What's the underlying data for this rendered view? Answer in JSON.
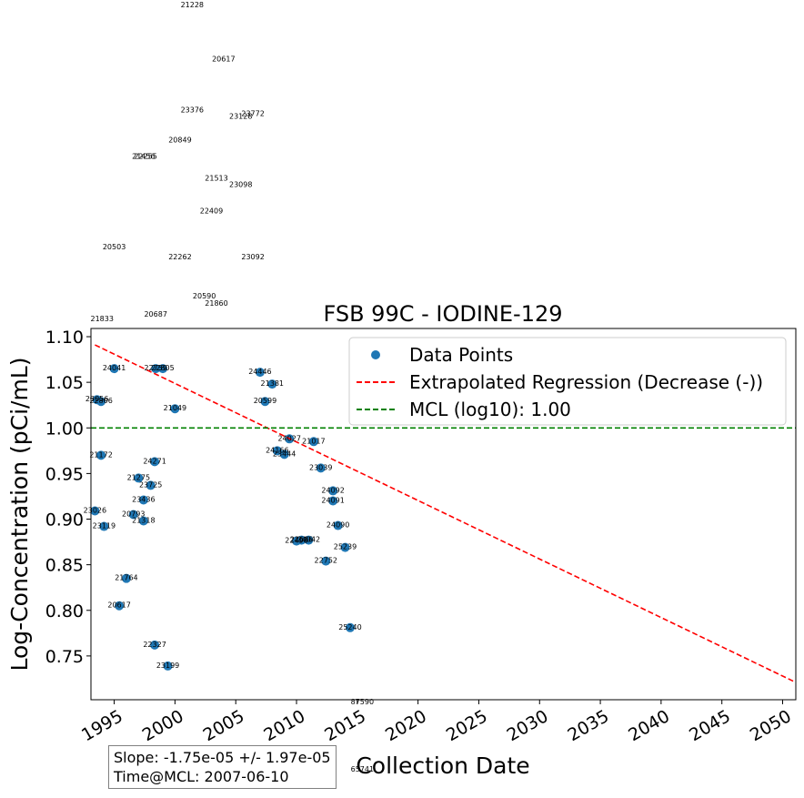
{
  "chart_data": {
    "type": "scatter",
    "title": "FSB 99C - IODINE-129",
    "xlabel": "Collection Date",
    "ylabel": "Log-Concentration (pCi/mL)",
    "xlim": [
      "1993-02-01",
      "2051-02-01"
    ],
    "ylim": [
      0.702,
      1.109
    ],
    "x_ticks": [
      "1995",
      "2000",
      "2005",
      "2010",
      "2015",
      "2020",
      "2025",
      "2030",
      "2035",
      "2040",
      "2045",
      "2050"
    ],
    "y_ticks": [
      "0.75",
      "0.80",
      "0.85",
      "0.90",
      "0.95",
      "1.00",
      "1.05",
      "1.10"
    ],
    "legend": {
      "location": "top-right",
      "entries": [
        "Data Points",
        "Extrapolated Regression (Decrease (-))",
        "MCL (log10): 1.00"
      ]
    },
    "colors": {
      "points": "#1f77b4",
      "regression": "#ff0000",
      "mcl": "#008000"
    },
    "series": [
      {
        "name": "Data Points",
        "points": [
          {
            "x": "1993-06-01",
            "y": 0.909,
            "label": "23026"
          },
          {
            "x": "1993-08-01",
            "y": 1.031,
            "label": "23056"
          },
          {
            "x": "1993-12-01",
            "y": 1.029,
            "label": "22806"
          },
          {
            "x": "1993-12-01",
            "y": 0.97,
            "label": "21172"
          },
          {
            "x": "1994-03-01",
            "y": 0.892,
            "label": "23119"
          },
          {
            "x": "1995-01-01",
            "y": 1.065,
            "label": "24041"
          },
          {
            "x": "1995-06-01",
            "y": 0.805,
            "label": "20617"
          },
          {
            "x": "1996-01-01",
            "y": 0.835,
            "label": "21764"
          },
          {
            "x": "1996-08-01",
            "y": 0.905,
            "label": "20793"
          },
          {
            "x": "1997-01-01",
            "y": 0.945,
            "label": "21275"
          },
          {
            "x": "1997-06-01",
            "y": 0.921,
            "label": "23436"
          },
          {
            "x": "1997-06-01",
            "y": 0.898,
            "label": "21318"
          },
          {
            "x": "1998-01-01",
            "y": 0.937,
            "label": "23725"
          },
          {
            "x": "1998-05-01",
            "y": 0.963,
            "label": "24271"
          },
          {
            "x": "1998-05-01",
            "y": 0.762,
            "label": "22327"
          },
          {
            "x": "1998-06-01",
            "y": 1.065,
            "label": "22759"
          },
          {
            "x": "1999-01-01",
            "y": 1.065,
            "label": "22805"
          },
          {
            "x": "1999-06-01",
            "y": 0.739,
            "label": "23199"
          },
          {
            "x": "2000-01-01",
            "y": 1.021,
            "label": "21049"
          },
          {
            "x": "2007-01-01",
            "y": 1.061,
            "label": "24446"
          },
          {
            "x": "2007-06-01",
            "y": 1.029,
            "label": "20599"
          },
          {
            "x": "2008-01-01",
            "y": 1.048,
            "label": "21381"
          },
          {
            "x": "2008-06-01",
            "y": 0.975,
            "label": "24166"
          },
          {
            "x": "2009-01-01",
            "y": 0.971,
            "label": "23444"
          },
          {
            "x": "2009-06-01",
            "y": 0.988,
            "label": "24027"
          },
          {
            "x": "2010-01-01",
            "y": 0.876,
            "label": "22498"
          },
          {
            "x": "2010-06-01",
            "y": 0.877,
            "label": "22666"
          },
          {
            "x": "2011-01-01",
            "y": 0.877,
            "label": "24042"
          },
          {
            "x": "2011-06-01",
            "y": 0.985,
            "label": "21017"
          },
          {
            "x": "2012-01-01",
            "y": 0.956,
            "label": "23039"
          },
          {
            "x": "2012-06-01",
            "y": 0.854,
            "label": "22752"
          },
          {
            "x": "2013-01-01",
            "y": 0.931,
            "label": "24092"
          },
          {
            "x": "2013-01-01",
            "y": 0.92,
            "label": "24091"
          },
          {
            "x": "2013-06-01",
            "y": 0.893,
            "label": "24090"
          },
          {
            "x": "2014-01-01",
            "y": 0.869,
            "label": "25239"
          },
          {
            "x": "2014-06-01",
            "y": 0.781,
            "label": "25240"
          }
        ]
      },
      {
        "name": "Extrapolated Regression (Decrease (-))",
        "points": [
          {
            "x": "1993-06-01",
            "y": 1.091
          },
          {
            "x": "2051-02-01",
            "y": 0.721
          }
        ]
      },
      {
        "name": "MCL (log10): 1.00",
        "points": [
          {
            "x": "1993-02-01",
            "y": 1.0
          },
          {
            "x": "2051-02-01",
            "y": 1.0
          }
        ]
      }
    ],
    "outlier_labels": [
      {
        "x": "2001-06-01",
        "y": 1.464,
        "label": "21228"
      },
      {
        "x": "2004-01-01",
        "y": 1.405,
        "label": "20617"
      },
      {
        "x": "2001-06-01",
        "y": 1.349,
        "label": "23376"
      },
      {
        "x": "2005-06-01",
        "y": 1.342,
        "label": "23128"
      },
      {
        "x": "2006-06-01",
        "y": 1.345,
        "label": "23772"
      },
      {
        "x": "2000-06-01",
        "y": 1.316,
        "label": "20849"
      },
      {
        "x": "1997-06-01",
        "y": 1.298,
        "label": "21456"
      },
      {
        "x": "1997-08-01",
        "y": 1.298,
        "label": "22255"
      },
      {
        "x": "2003-06-01",
        "y": 1.274,
        "label": "21513"
      },
      {
        "x": "2005-06-01",
        "y": 1.267,
        "label": "23098"
      },
      {
        "x": "2003-01-01",
        "y": 1.238,
        "label": "22409"
      },
      {
        "x": "1995-01-01",
        "y": 1.199,
        "label": "20503"
      },
      {
        "x": "2000-06-01",
        "y": 1.188,
        "label": "22262"
      },
      {
        "x": "2006-06-01",
        "y": 1.188,
        "label": "23092"
      },
      {
        "x": "2002-06-01",
        "y": 1.145,
        "label": "20590"
      },
      {
        "x": "2003-06-01",
        "y": 1.137,
        "label": "21860"
      },
      {
        "x": "1998-06-01",
        "y": 1.125,
        "label": "20687"
      },
      {
        "x": "1994-01-01",
        "y": 1.12,
        "label": "21833"
      },
      {
        "x": "2015-06-01",
        "y": 0.7,
        "label": "87590"
      },
      {
        "x": "2015-06-01",
        "y": 0.626,
        "label": "65741"
      }
    ]
  },
  "stats": {
    "slope": "Slope: -1.75e-05 +/- 1.97e-05",
    "time_at_mcl": "Time@MCL: 2007-06-10"
  }
}
